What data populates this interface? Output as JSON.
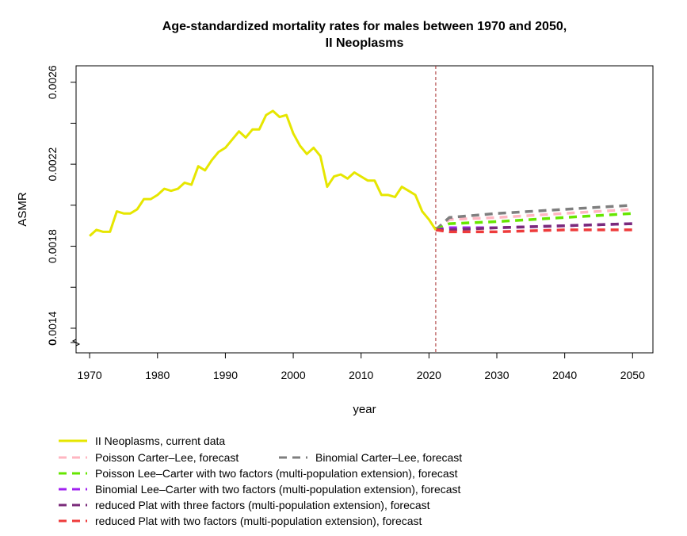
{
  "chart_data": {
    "type": "line",
    "title": "Age-standardized mortality rates for males between 1970 and 2050,",
    "subtitle": "II Neoplasms",
    "xlabel": "year",
    "ylabel": "ASMR",
    "xlim": [
      1968,
      2053
    ],
    "ylim": [
      0.00128,
      0.00268
    ],
    "x_ticks": [
      "1970",
      "1980",
      "1990",
      "2000",
      "2010",
      "2020",
      "2030",
      "2040",
      "2050"
    ],
    "y_ticks": [
      "0.0014",
      "0.0018",
      "0.0022",
      "0.0026"
    ],
    "y_break_label": "0",
    "vline_x": 2021,
    "grid": false,
    "legend_position": "bottom",
    "series": [
      {
        "name": "II Neoplasms, current data",
        "color": "#e6e600",
        "style": "solid",
        "x": [
          1970,
          1971,
          1972,
          1973,
          1974,
          1975,
          1976,
          1977,
          1978,
          1979,
          1980,
          1981,
          1982,
          1983,
          1984,
          1985,
          1986,
          1987,
          1988,
          1989,
          1990,
          1991,
          1992,
          1993,
          1994,
          1995,
          1996,
          1997,
          1998,
          1999,
          2000,
          2001,
          2002,
          2003,
          2004,
          2005,
          2006,
          2007,
          2008,
          2009,
          2010,
          2011,
          2012,
          2013,
          2014,
          2015,
          2016,
          2017,
          2018,
          2019,
          2020,
          2021
        ],
        "y": [
          0.00185,
          0.00188,
          0.00187,
          0.00187,
          0.00197,
          0.00196,
          0.00196,
          0.00198,
          0.00203,
          0.00203,
          0.00205,
          0.00208,
          0.00207,
          0.00208,
          0.00211,
          0.0021,
          0.00219,
          0.00217,
          0.00222,
          0.00226,
          0.00228,
          0.00232,
          0.00236,
          0.00233,
          0.00237,
          0.00237,
          0.00244,
          0.00246,
          0.00243,
          0.00244,
          0.00235,
          0.00229,
          0.00225,
          0.00228,
          0.00224,
          0.00209,
          0.00214,
          0.00215,
          0.00213,
          0.00216,
          0.00214,
          0.00212,
          0.00212,
          0.00205,
          0.00205,
          0.00204,
          0.00209,
          0.00207,
          0.00205,
          0.00197,
          0.00193,
          0.00188
        ]
      },
      {
        "name": "Poisson Carter–Lee, forecast",
        "color": "#ffb6c1",
        "style": "dashed",
        "x": [
          2021,
          2023,
          2030,
          2040,
          2050
        ],
        "y": [
          0.00188,
          0.00193,
          0.00194,
          0.00196,
          0.00198
        ]
      },
      {
        "name": "Binomial Carter–Lee, forecast",
        "color": "#7f7f7f",
        "style": "dashed",
        "x": [
          2021,
          2023,
          2030,
          2040,
          2050
        ],
        "y": [
          0.00188,
          0.00194,
          0.00196,
          0.00198,
          0.002
        ]
      },
      {
        "name": "Poisson Lee–Carter with two factors (multi-population extension), forecast",
        "color": "#66e600",
        "style": "dashed",
        "x": [
          2021,
          2023,
          2030,
          2040,
          2050
        ],
        "y": [
          0.00188,
          0.00191,
          0.00192,
          0.00194,
          0.00196
        ]
      },
      {
        "name": "Binomial Lee–Carter with two factors (multi-population extension), forecast",
        "color": "#a020f0",
        "style": "dashed",
        "x": [
          2021,
          2023,
          2030,
          2040,
          2050
        ],
        "y": [
          0.00188,
          0.00189,
          0.00189,
          0.0019,
          0.00191
        ]
      },
      {
        "name": "reduced Plat with three factors (multi-population extension), forecast",
        "color": "#7a2a7a",
        "style": "dashed",
        "x": [
          2021,
          2023,
          2030,
          2040,
          2050
        ],
        "y": [
          0.00188,
          0.00188,
          0.00189,
          0.0019,
          0.00191
        ]
      },
      {
        "name": "reduced Plat with two factors (multi-population extension), forecast",
        "color": "#ee3b3b",
        "style": "dashed",
        "x": [
          2021,
          2023,
          2030,
          2040,
          2050
        ],
        "y": [
          0.00188,
          0.00187,
          0.00187,
          0.00188,
          0.00188
        ]
      }
    ]
  }
}
